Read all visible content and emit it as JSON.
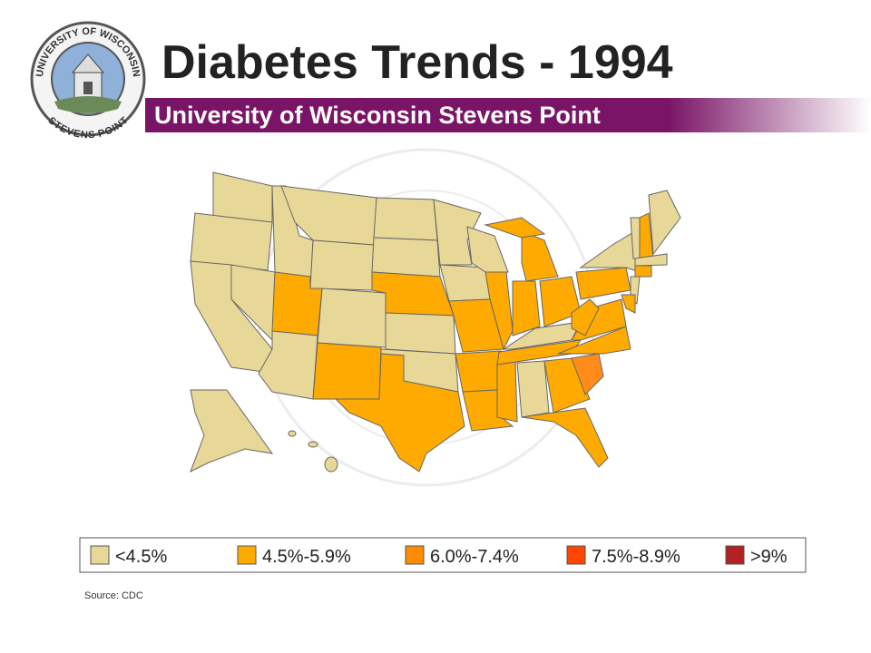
{
  "header": {
    "title": "Diabetes Trends - 1994",
    "subtitle": "University of Wisconsin Stevens Point"
  },
  "logo": {
    "top_text": "UNIVERSITY OF WISCONSIN",
    "bottom_text": "STEVENS POINT"
  },
  "legend": {
    "items": [
      {
        "label": "<4.5%",
        "color": "#e8d898"
      },
      {
        "label": "4.5%-5.9%",
        "color": "#ffaa00"
      },
      {
        "label": "6.0%-7.4%",
        "color": "#ff8c00"
      },
      {
        "label": "7.5%-8.9%",
        "color": "#ff4500"
      },
      {
        "label": ">9%",
        "color": "#b22222"
      }
    ]
  },
  "source": "Source: CDC"
}
